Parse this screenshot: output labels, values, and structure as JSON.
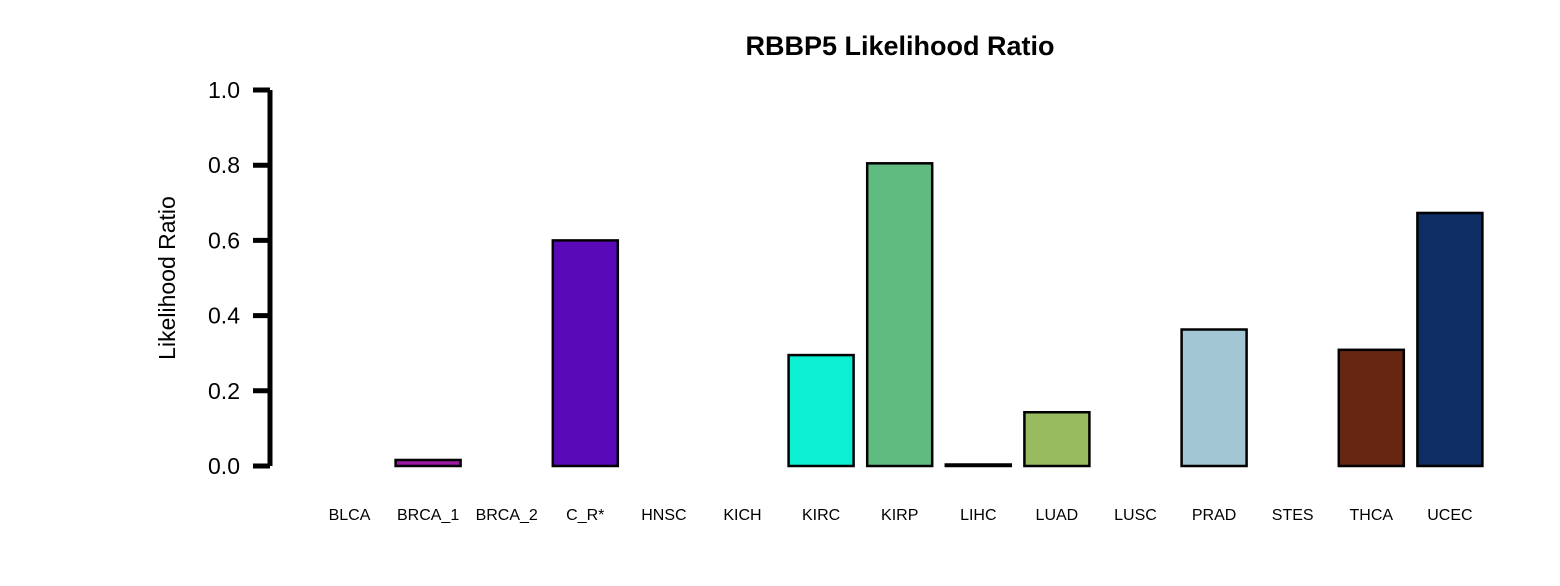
{
  "chart_data": {
    "type": "bar",
    "title": "RBBP5 Likelihood Ratio",
    "ylabel": "Likelihood Ratio",
    "xlabel": "",
    "ylim": [
      0,
      1.0
    ],
    "yticks": [
      "0.0",
      "0.2",
      "0.4",
      "0.6",
      "0.8",
      "1.0"
    ],
    "grid": false,
    "categories": [
      "BLCA",
      "BRCA_1",
      "BRCA_2",
      "C_R*",
      "HNSC",
      "KICH",
      "KIRC",
      "KIRP",
      "LIHC",
      "LUAD",
      "LUSC",
      "PRAD",
      "STES",
      "THCA",
      "UCEC"
    ],
    "values": [
      0.0,
      0.016,
      0.0,
      0.6,
      0.0,
      0.0,
      0.295,
      0.805,
      0.004,
      0.143,
      0.0,
      0.363,
      0.0,
      0.309,
      0.673
    ],
    "colors": [
      "#ffffff",
      "#9a19a5",
      "#ffffff",
      "#5a09b8",
      "#ffffff",
      "#ffffff",
      "#0cefd2",
      "#60bb81",
      "#ffffff",
      "#97bb5e",
      "#ffffff",
      "#a2c6d3",
      "#ffffff",
      "#662612",
      "#0e2e63"
    ]
  }
}
